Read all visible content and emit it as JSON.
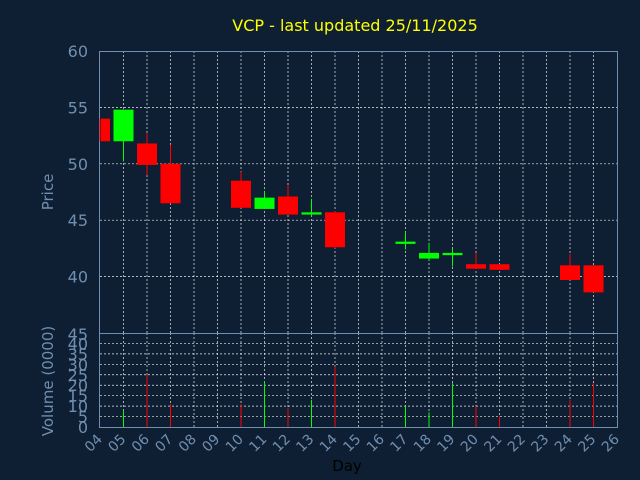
{
  "chart_data": {
    "type": "candlestick",
    "title": "VCP - last updated 25/11/2025",
    "ylabel": "Price",
    "volume_label": "Volume (0000)",
    "xlabel": "Day",
    "price_ylim": [
      35,
      60
    ],
    "price_ticks": [
      "40",
      "45",
      "50",
      "55",
      "60"
    ],
    "price_bottom_label": "45",
    "volume_ylim": [
      0,
      45
    ],
    "volume_ticks": [
      "0",
      "5",
      "10",
      "15",
      "20",
      "25",
      "30",
      "35",
      "40"
    ],
    "x_ticks": [
      "04",
      "05",
      "06",
      "07",
      "08",
      "09",
      "10",
      "11",
      "12",
      "13",
      "14",
      "15",
      "16",
      "17",
      "18",
      "19",
      "20",
      "21",
      "22",
      "23",
      "24",
      "25",
      "26"
    ],
    "grid": true,
    "up_color": "#00ff00",
    "down_color": "#ff0000",
    "candles": [
      {
        "day": 4,
        "open": 54.0,
        "close": 52.0,
        "high": 54.0,
        "low": 52.0,
        "volume": 0
      },
      {
        "day": 5,
        "open": 52.0,
        "close": 54.8,
        "high": 54.8,
        "low": 50.2,
        "volume": 8
      },
      {
        "day": 6,
        "open": 51.8,
        "close": 49.9,
        "high": 52.7,
        "low": 49.0,
        "volume": 25
      },
      {
        "day": 7,
        "open": 50.0,
        "close": 46.5,
        "high": 51.7,
        "low": 46.5,
        "volume": 11
      },
      {
        "day": 10,
        "open": 48.5,
        "close": 46.1,
        "high": 49.3,
        "low": 46.1,
        "volume": 11
      },
      {
        "day": 11,
        "open": 46.0,
        "close": 47.0,
        "high": 47.6,
        "low": 46.0,
        "volume": 22
      },
      {
        "day": 12,
        "open": 47.1,
        "close": 45.5,
        "high": 48.1,
        "low": 45.5,
        "volume": 9
      },
      {
        "day": 13,
        "open": 45.5,
        "close": 45.7,
        "high": 46.9,
        "low": 45.4,
        "volume": 13
      },
      {
        "day": 14,
        "open": 45.7,
        "close": 42.6,
        "high": 45.8,
        "low": 42.5,
        "volume": 29
      },
      {
        "day": 17,
        "open": 42.9,
        "close": 43.1,
        "high": 44.0,
        "low": 42.4,
        "volume": 10
      },
      {
        "day": 18,
        "open": 41.6,
        "close": 42.1,
        "high": 43.0,
        "low": 41.4,
        "volume": 7
      },
      {
        "day": 19,
        "open": 41.9,
        "close": 42.1,
        "high": 42.5,
        "low": 40.9,
        "volume": 21
      },
      {
        "day": 20,
        "open": 41.1,
        "close": 40.7,
        "high": 42.1,
        "low": 40.7,
        "volume": 10
      },
      {
        "day": 21,
        "open": 41.1,
        "close": 40.6,
        "high": 41.1,
        "low": 40.6,
        "volume": 5
      },
      {
        "day": 24,
        "open": 41.0,
        "close": 39.7,
        "high": 42.0,
        "low": 39.7,
        "volume": 13
      },
      {
        "day": 25,
        "open": 41.0,
        "close": 38.6,
        "high": 41.0,
        "low": 38.6,
        "volume": 21
      }
    ]
  }
}
